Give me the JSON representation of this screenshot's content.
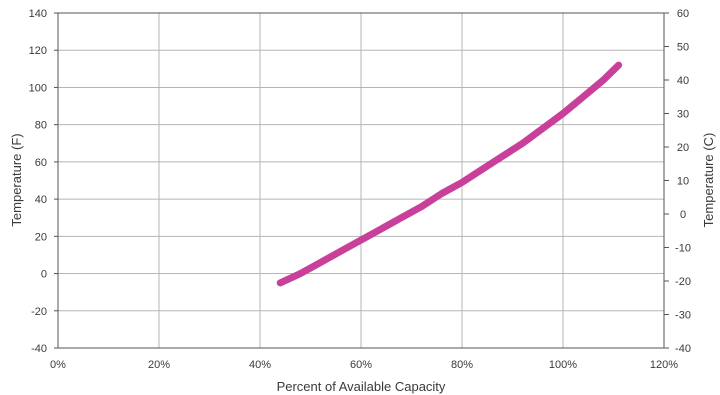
{
  "chart_data": {
    "type": "line",
    "xlabel": "Percent of Available Capacity",
    "ylabel": "Temperature (F)",
    "ylabel_right": "Temperature (C)",
    "xlim": [
      0,
      120
    ],
    "ylim": [
      -40,
      140
    ],
    "ylim_right": [
      -40,
      60
    ],
    "x_ticks": [
      "0%",
      "20%",
      "40%",
      "60%",
      "80%",
      "100%",
      "120%"
    ],
    "y_ticks": [
      "-40",
      "-20",
      "0",
      "20",
      "40",
      "60",
      "80",
      "100",
      "120",
      "140"
    ],
    "y_ticks_right": [
      "-40",
      "-30",
      "-20",
      "-10",
      "0",
      "10",
      "20",
      "30",
      "40",
      "50",
      "60"
    ],
    "grid": true,
    "line_color": "#c9409a",
    "series": [
      {
        "x": [
          44,
          48,
          52,
          56,
          60,
          64,
          68,
          72,
          76,
          80,
          84,
          88,
          92,
          96,
          100,
          104,
          108,
          111
        ],
        "y": [
          -5,
          0,
          6,
          12,
          18,
          24,
          30,
          36,
          43,
          49,
          56,
          63,
          70,
          78,
          86,
          95,
          104,
          112
        ]
      }
    ]
  }
}
